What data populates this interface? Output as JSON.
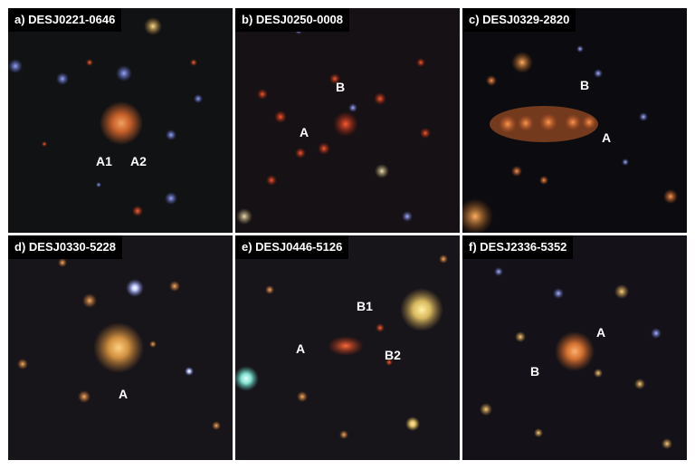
{
  "figure": {
    "panels": [
      {
        "title": "a) DESJ0221-0646",
        "labels": [
          "A1",
          "A2"
        ]
      },
      {
        "title": "b) DESJ0250-0008",
        "labels": [
          "B",
          "A"
        ]
      },
      {
        "title": "c) DESJ0329-2820",
        "labels": [
          "B",
          "A"
        ]
      },
      {
        "title": "d) DESJ0330-5228",
        "labels": [
          "A"
        ]
      },
      {
        "title": "e) DESJ0446-5126",
        "labels": [
          "B1",
          "A",
          "B2"
        ]
      },
      {
        "title": "f) DESJ2336-5352",
        "labels": [
          "A",
          "B"
        ]
      }
    ]
  }
}
